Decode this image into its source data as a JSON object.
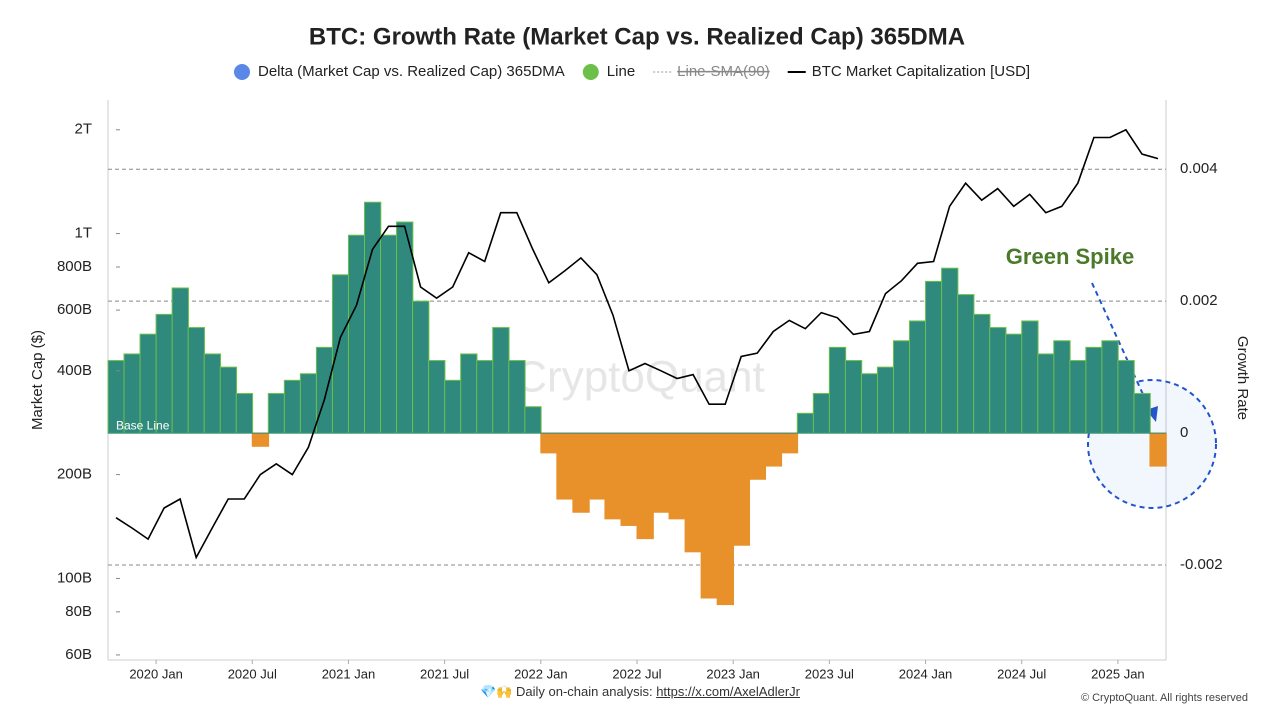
{
  "chart_data": {
    "type": "bar",
    "title": "BTC: Growth Rate (Market Cap vs. Realized Cap) 365DMA",
    "y_label": "Market Cap ($)",
    "y2_label": "Growth Rate",
    "watermark": "CryptoQuant",
    "annotations": {
      "spike": "Green Spike",
      "base": "Base Line"
    },
    "footer": {
      "text": "💎🙌 Daily on-chain analysis:",
      "link": "https://x.com/AxelAdlerJr",
      "copyright": "© CryptoQuant. All rights reserved"
    },
    "categories": [
      "2019-10",
      "2019-11",
      "2019-12",
      "2020-01",
      "2020-02",
      "2020-03",
      "2020-04",
      "2020-05",
      "2020-06",
      "2020-07",
      "2020-08",
      "2020-09",
      "2020-10",
      "2020-11",
      "2020-12",
      "2021-01",
      "2021-02",
      "2021-03",
      "2021-04",
      "2021-05",
      "2021-06",
      "2021-07",
      "2021-08",
      "2021-09",
      "2021-10",
      "2021-11",
      "2021-12",
      "2022-01",
      "2022-02",
      "2022-03",
      "2022-04",
      "2022-05",
      "2022-06",
      "2022-07",
      "2022-08",
      "2022-09",
      "2022-10",
      "2022-11",
      "2022-12",
      "2023-01",
      "2023-02",
      "2023-03",
      "2023-04",
      "2023-05",
      "2023-06",
      "2023-07",
      "2023-08",
      "2023-09",
      "2023-10",
      "2023-11",
      "2023-12",
      "2024-01",
      "2024-02",
      "2024-03",
      "2024-04",
      "2024-05",
      "2024-06",
      "2024-07",
      "2024-08",
      "2024-09",
      "2024-10",
      "2024-11",
      "2024-12",
      "2025-01",
      "2025-02",
      "2025-03"
    ],
    "xticks": [
      {
        "value": "2020-01",
        "label": "2020 Jan"
      },
      {
        "value": "2020-07",
        "label": "2020 Jul"
      },
      {
        "value": "2021-01",
        "label": "2021 Jan"
      },
      {
        "value": "2021-07",
        "label": "2021 Jul"
      },
      {
        "value": "2022-01",
        "label": "2022 Jan"
      },
      {
        "value": "2022-07",
        "label": "2022 Jul"
      },
      {
        "value": "2023-01",
        "label": "2023 Jan"
      },
      {
        "value": "2023-07",
        "label": "2023 Jul"
      },
      {
        "value": "2024-01",
        "label": "2024 Jan"
      },
      {
        "value": "2024-07",
        "label": "2024 Jul"
      },
      {
        "value": "2025-01",
        "label": "2025 Jan"
      }
    ],
    "series": [
      {
        "name": "Delta (Market Cap vs. Realized Cap) 365DMA",
        "color": "#5b87e6",
        "positive_color": "#2f8a7d",
        "positive_edge": "#6cc04a",
        "negative_color": "#e8902a",
        "axis": "y2",
        "values": [
          0.0011,
          0.0012,
          0.0015,
          0.0018,
          0.0022,
          0.0016,
          0.0012,
          0.001,
          0.0006,
          -0.0002,
          0.0006,
          0.0008,
          0.0009,
          0.0013,
          0.0024,
          0.003,
          0.0035,
          0.003,
          0.0032,
          0.002,
          0.0011,
          0.0008,
          0.0012,
          0.0011,
          0.0016,
          0.0011,
          0.0004,
          -0.0003,
          -0.001,
          -0.0012,
          -0.001,
          -0.0013,
          -0.0014,
          -0.0016,
          -0.0012,
          -0.0013,
          -0.0018,
          -0.0025,
          -0.0026,
          -0.0017,
          -0.0007,
          -0.0005,
          -0.0003,
          0.0003,
          0.0006,
          0.0013,
          0.0011,
          0.0009,
          0.001,
          0.0014,
          0.0017,
          0.0023,
          0.0025,
          0.0021,
          0.0018,
          0.0016,
          0.0015,
          0.0017,
          0.0012,
          0.0014,
          0.0011,
          0.0013,
          0.0014,
          0.0011,
          0.0006,
          -0.0005
        ]
      },
      {
        "name": "BTC Market Capitalization [USD]",
        "color": "#000000",
        "axis": "y",
        "values": [
          150000000000.0,
          140000000000.0,
          130000000000.0,
          160000000000.0,
          170000000000.0,
          115000000000.0,
          140000000000.0,
          170000000000.0,
          170000000000.0,
          200000000000.0,
          215000000000.0,
          200000000000.0,
          240000000000.0,
          330000000000.0,
          500000000000.0,
          620000000000.0,
          900000000000.0,
          1050000000000.0,
          1050000000000.0,
          700000000000.0,
          650000000000.0,
          700000000000.0,
          880000000000.0,
          830000000000.0,
          1150000000000.0,
          1150000000000.0,
          900000000000.0,
          720000000000.0,
          780000000000.0,
          850000000000.0,
          760000000000.0,
          580000000000.0,
          400000000000.0,
          420000000000.0,
          400000000000.0,
          380000000000.0,
          390000000000.0,
          320000000000.0,
          320000000000.0,
          440000000000.0,
          450000000000.0,
          520000000000.0,
          560000000000.0,
          530000000000.0,
          590000000000.0,
          570000000000.0,
          510000000000.0,
          520000000000.0,
          670000000000.0,
          730000000000.0,
          820000000000.0,
          830000000000.0,
          1200000000000.0,
          1400000000000.0,
          1250000000000.0,
          1350000000000.0,
          1200000000000.0,
          1300000000000.0,
          1150000000000.0,
          1200000000000.0,
          1400000000000.0,
          1900000000000.0,
          1900000000000.0,
          2000000000000.0,
          1700000000000.0,
          1650000000000.0
        ]
      }
    ],
    "legend_extra": [
      {
        "name": "Line",
        "color": "#6cc04a"
      },
      {
        "name": "Line-SMA(90)",
        "color": "#999999",
        "struck": true
      }
    ],
    "ylog": true,
    "ylim": [
      58000000000.0,
      2440000000000.0
    ],
    "yticks": [
      {
        "value": 60000000000.0,
        "label": "60B"
      },
      {
        "value": 80000000000.0,
        "label": "80B"
      },
      {
        "value": 100000000000.0,
        "label": "100B"
      },
      {
        "value": 200000000000.0,
        "label": "200B"
      },
      {
        "value": 400000000000.0,
        "label": "400B"
      },
      {
        "value": 600000000000.0,
        "label": "600B"
      },
      {
        "value": 800000000000.0,
        "label": "800B"
      },
      {
        "value": 1000000000000.0,
        "label": "1T"
      },
      {
        "value": 2000000000000.0,
        "label": "2T"
      }
    ],
    "y2lim": [
      -0.00344,
      0.00505
    ],
    "y2ticks": [
      -0.002,
      0,
      0.002,
      0.004
    ],
    "grid": true
  }
}
